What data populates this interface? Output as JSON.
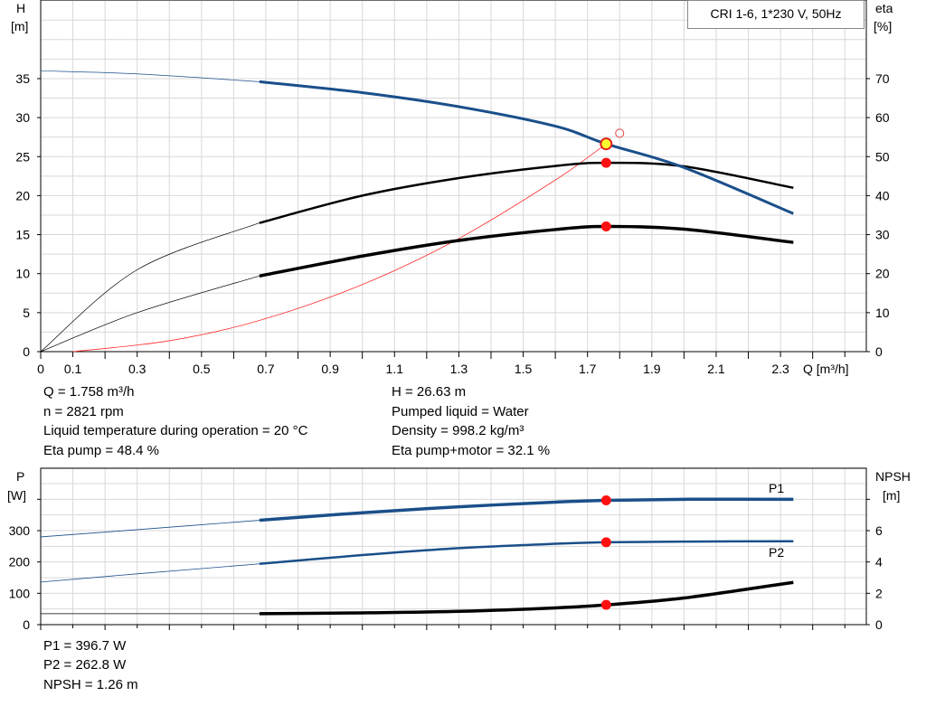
{
  "chart_data": [
    {
      "type": "line",
      "title": "CRI 1-6, 1*230 V, 50Hz",
      "xlabel": "Q [m³/h]",
      "ylabel": "H",
      "ylabel_unit": "[m]",
      "y2label": "eta",
      "y2label_unit": "[%]",
      "xlim": [
        0,
        2.5
      ],
      "ylim": [
        0,
        45
      ],
      "y2lim": [
        0,
        90
      ],
      "x_ticks": [
        "0",
        "0.1",
        "0.3",
        "0.5",
        "0.7",
        "0.9",
        "1.1",
        "1.3",
        "1.5",
        "1.7",
        "1.9",
        "2.1",
        "2.3"
      ],
      "y_ticks": [
        0,
        5,
        10,
        15,
        20,
        25,
        30,
        35
      ],
      "y2_ticks": [
        0,
        10,
        20,
        30,
        40,
        50,
        60,
        70
      ],
      "grid": true,
      "series": [
        {
          "key": "H",
          "axis": "left",
          "color": "#1a4f8a",
          "x": [
            0,
            0.3,
            0.68,
            1.0,
            1.3,
            1.6,
            1.758,
            2.0,
            2.34
          ],
          "y": [
            36,
            35.6,
            34.6,
            33.2,
            31.4,
            28.9,
            26.63,
            23.6,
            17.7
          ]
        },
        {
          "key": "eta_pump",
          "axis": "right",
          "color": "#000000",
          "x": [
            0,
            0.3,
            0.68,
            1.0,
            1.3,
            1.6,
            1.758,
            2.0,
            2.34
          ],
          "y": [
            0,
            21,
            33,
            40,
            44.5,
            47.6,
            48.4,
            47.5,
            42
          ]
        },
        {
          "key": "eta_pump_motor",
          "axis": "right",
          "color": "#000000",
          "x": [
            0,
            0.3,
            0.68,
            1.0,
            1.3,
            1.6,
            1.758,
            2.0,
            2.34
          ],
          "y": [
            0,
            10,
            19.4,
            24.5,
            28.5,
            31.3,
            32.1,
            31.4,
            28
          ]
        },
        {
          "key": "system",
          "axis": "left",
          "color": "#ff3030",
          "x": [
            0.1,
            0.4,
            0.68,
            1.0,
            1.3,
            1.6,
            1.758
          ],
          "y": [
            0,
            1.4,
            4.0,
            8.6,
            14.5,
            22,
            26.63
          ]
        }
      ],
      "duty_point": {
        "q": 1.758,
        "h": 26.63,
        "eta_pump": 48.4,
        "eta_pump_motor": 32.1
      },
      "requested_point": {
        "q": 1.8,
        "h": 28
      }
    },
    {
      "type": "line",
      "ylabel": "P",
      "ylabel_unit": "[W]",
      "y2label": "NPSH",
      "y2label_unit": "[m]",
      "xlim": [
        0,
        2.5
      ],
      "ylim": [
        0,
        500
      ],
      "y2lim": [
        0,
        10
      ],
      "y_ticks": [
        0,
        100,
        200,
        300
      ],
      "y2_ticks": [
        0,
        2,
        4,
        6
      ],
      "grid": true,
      "series": [
        {
          "name": "P1",
          "axis": "left",
          "color": "#1a4f8a",
          "x": [
            0,
            0.3,
            0.68,
            1.0,
            1.3,
            1.6,
            1.758,
            2.0,
            2.34
          ],
          "y": [
            280,
            303,
            333,
            357,
            376,
            391,
            396.7,
            400,
            400
          ]
        },
        {
          "name": "P2",
          "axis": "left",
          "color": "#1a4f8a",
          "x": [
            0,
            0.3,
            0.68,
            1.0,
            1.3,
            1.6,
            1.758,
            2.0,
            2.34
          ],
          "y": [
            136,
            162,
            194,
            222,
            244,
            258,
            262.8,
            265,
            266
          ]
        },
        {
          "key": "NPSH",
          "axis": "right",
          "color": "#000000",
          "x": [
            0,
            0.3,
            0.68,
            1.0,
            1.3,
            1.6,
            1.758,
            2.0,
            2.34
          ],
          "y": [
            0.7,
            0.7,
            0.7,
            0.75,
            0.85,
            1.07,
            1.26,
            1.7,
            2.7
          ]
        }
      ],
      "duty_point": {
        "q": 1.758,
        "p1": 396.7,
        "p2": 262.8,
        "npsh": 1.26
      }
    }
  ],
  "info_top": {
    "q": "Q = 1.758 m³/h",
    "n": "n = 2821 rpm",
    "temp": "Liquid temperature during operation = 20 °C",
    "eta_pump": "Eta pump = 48.4 %",
    "h": "H = 26.63 m",
    "liquid": "Pumped liquid = Water",
    "density": "Density = 998.2 kg/m³",
    "eta_pm": "Eta pump+motor = 32.1 %"
  },
  "info_bottom": {
    "p1": "P1 = 396.7 W",
    "p2": "P2 = 262.8 W",
    "npsh": "NPSH = 1.26 m"
  }
}
